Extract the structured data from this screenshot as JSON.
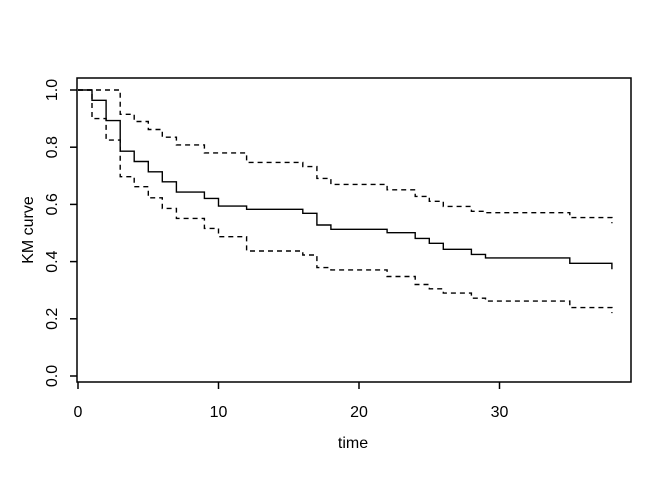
{
  "figure": {
    "background": "#ffffff",
    "foreground": "#000000"
  },
  "chart_data": {
    "type": "line",
    "subtype": "kaplan-meier-step",
    "title": "",
    "xlabel": "time",
    "ylabel": "KM curve",
    "xlim": [
      0,
      39.4
    ],
    "ylim": [
      -0.042,
      1.042
    ],
    "grid": false,
    "legend": null,
    "xticks": [
      {
        "value": 0,
        "label": "0"
      },
      {
        "value": 10,
        "label": "10"
      },
      {
        "value": 20,
        "label": "20"
      },
      {
        "value": 30,
        "label": "30"
      }
    ],
    "yticks": [
      {
        "value": 0.0,
        "label": "0.0"
      },
      {
        "value": 0.2,
        "label": "0.2"
      },
      {
        "value": 0.4,
        "label": "0.4"
      },
      {
        "value": 0.6,
        "label": "0.6"
      },
      {
        "value": 0.8,
        "label": "0.8"
      },
      {
        "value": 1.0,
        "label": "1.0"
      }
    ],
    "series": [
      {
        "name": "km-curve",
        "line_style": "solid",
        "color": "#000000",
        "step_points": [
          [
            0,
            1.0
          ],
          [
            1,
            0.964
          ],
          [
            2,
            0.893
          ],
          [
            3,
            0.786
          ],
          [
            4,
            0.75
          ],
          [
            5,
            0.714
          ],
          [
            6,
            0.679
          ],
          [
            7,
            0.643
          ],
          [
            9,
            0.621
          ],
          [
            10,
            0.594
          ],
          [
            12,
            0.583
          ],
          [
            16,
            0.569
          ],
          [
            17,
            0.528
          ],
          [
            18,
            0.513
          ],
          [
            22,
            0.501
          ],
          [
            24,
            0.481
          ],
          [
            25,
            0.464
          ],
          [
            26,
            0.443
          ],
          [
            28,
            0.425
          ],
          [
            29,
            0.413
          ],
          [
            35,
            0.394
          ],
          [
            38,
            0.373
          ]
        ]
      },
      {
        "name": "upper-confidence-band",
        "line_style": "dashed",
        "color": "#000000",
        "step_points": [
          [
            0,
            1.0
          ],
          [
            3,
            0.915
          ],
          [
            4,
            0.89
          ],
          [
            5,
            0.862
          ],
          [
            6,
            0.835
          ],
          [
            7,
            0.808
          ],
          [
            9,
            0.78
          ],
          [
            12,
            0.747
          ],
          [
            16,
            0.732
          ],
          [
            17,
            0.691
          ],
          [
            18,
            0.67
          ],
          [
            22,
            0.651
          ],
          [
            24,
            0.628
          ],
          [
            25,
            0.611
          ],
          [
            26,
            0.593
          ],
          [
            28,
            0.576
          ],
          [
            29,
            0.571
          ],
          [
            35,
            0.554
          ],
          [
            38,
            0.534
          ]
        ]
      },
      {
        "name": "lower-confidence-band",
        "line_style": "dashed",
        "color": "#000000",
        "step_points": [
          [
            0,
            1.0
          ],
          [
            1,
            0.9
          ],
          [
            2,
            0.825
          ],
          [
            3,
            0.697
          ],
          [
            4,
            0.662
          ],
          [
            5,
            0.623
          ],
          [
            6,
            0.586
          ],
          [
            7,
            0.551
          ],
          [
            9,
            0.516
          ],
          [
            10,
            0.487
          ],
          [
            12,
            0.437
          ],
          [
            16,
            0.423
          ],
          [
            17,
            0.379
          ],
          [
            18,
            0.371
          ],
          [
            22,
            0.348
          ],
          [
            24,
            0.32
          ],
          [
            25,
            0.305
          ],
          [
            26,
            0.29
          ],
          [
            28,
            0.272
          ],
          [
            29,
            0.262
          ],
          [
            35,
            0.239
          ],
          [
            38,
            0.22
          ]
        ]
      }
    ]
  }
}
